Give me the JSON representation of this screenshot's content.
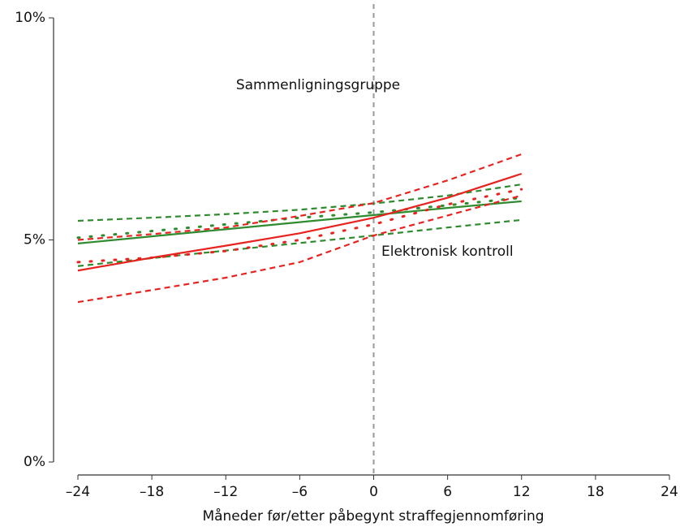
{
  "chart_data": {
    "type": "line",
    "x_label": "Måneder før/etter påbegynt straffegjennomføring",
    "annotations": [
      "Sammenligningsgruppe",
      "Elektronisk kontroll"
    ],
    "x": [
      -24,
      -18,
      -12,
      -6,
      0,
      6,
      12
    ],
    "series": [
      {
        "color": "#2e8b2e",
        "style": "dashed",
        "values": [
          5.43,
          5.5,
          5.58,
          5.68,
          5.82,
          6.0,
          6.25
        ]
      },
      {
        "color": "#2e8b2e",
        "style": "dotted",
        "values": [
          5.05,
          5.2,
          5.35,
          5.5,
          5.62,
          5.78,
          5.95
        ]
      },
      {
        "color": "#2e8b2e",
        "style": "solid",
        "values": [
          4.92,
          5.08,
          5.24,
          5.4,
          5.56,
          5.72,
          5.87
        ]
      },
      {
        "color": "#2e8b2e",
        "style": "dashed",
        "values": [
          4.41,
          4.59,
          4.76,
          4.93,
          5.1,
          5.28,
          5.45
        ]
      },
      {
        "color": "#e8231f",
        "style": "dashed",
        "values": [
          5.0,
          5.13,
          5.28,
          5.54,
          5.83,
          6.34,
          6.93
        ]
      },
      {
        "color": "#e8231f",
        "style": "dotted",
        "values": [
          4.5,
          4.6,
          4.75,
          5.0,
          5.35,
          5.8,
          6.14
        ]
      },
      {
        "color": "#e8231f",
        "style": "solid",
        "values": [
          4.31,
          4.6,
          4.87,
          5.15,
          5.5,
          5.95,
          6.49
        ]
      },
      {
        "color": "#e8231f",
        "style": "dashed",
        "values": [
          3.6,
          3.87,
          4.15,
          4.5,
          5.1,
          5.55,
          6.0
        ]
      }
    ],
    "vline": 0,
    "xlim": [
      -24,
      24
    ],
    "xticks": [
      {
        "value": -24,
        "label": "–24"
      },
      {
        "value": -18,
        "label": "–18"
      },
      {
        "value": -12,
        "label": "–12"
      },
      {
        "value": -6,
        "label": "–6"
      },
      0,
      6,
      12,
      18,
      24
    ],
    "ylim": [
      0,
      10
    ],
    "yticks": [
      {
        "value": 0,
        "label": "0%"
      },
      {
        "value": 5,
        "label": "5%"
      },
      {
        "value": 10,
        "label": "10%"
      }
    ]
  }
}
